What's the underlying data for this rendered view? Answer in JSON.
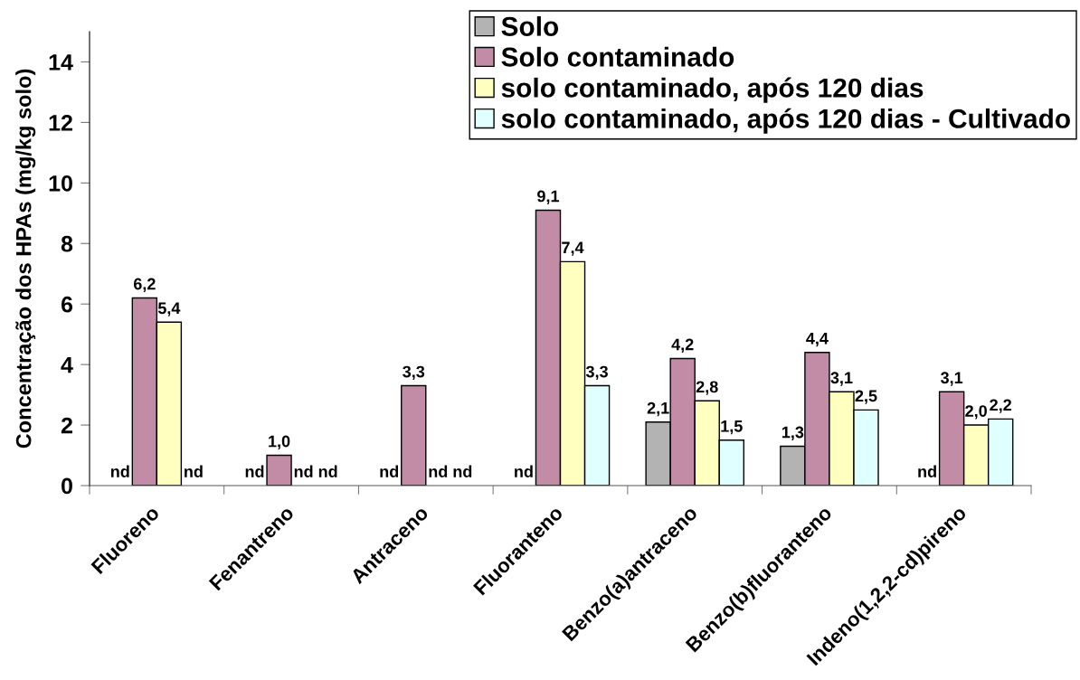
{
  "chart_data": {
    "type": "bar",
    "ylabel": "Concentração dos HPAs (mg/kg solo)",
    "categories": [
      "Fluoreno",
      "Fenantreno",
      "Antraceno",
      "Fluoranteno",
      "Benzo(a)antraceno",
      "Benzo(b)fluoranteno",
      "Indeno(1,2,2-cd)pireno"
    ],
    "series": [
      {
        "name": "Solo",
        "color": "#b3b3b3",
        "values": [
          null,
          null,
          null,
          null,
          2.1,
          1.3,
          null
        ],
        "value_labels": [
          "nd",
          "nd",
          "nd",
          "nd",
          "2,1",
          "1,3",
          "nd"
        ]
      },
      {
        "name": "Solo contaminado",
        "color": "#c28ca6",
        "values": [
          6.2,
          1.0,
          3.3,
          9.1,
          4.2,
          4.4,
          3.1
        ],
        "value_labels": [
          "6,2",
          "1,0",
          "3,3",
          "9,1",
          "4,2",
          "4,4",
          "3,1"
        ]
      },
      {
        "name": "solo contaminado, após 120 dias",
        "color": "#ffffbf",
        "values": [
          5.4,
          null,
          null,
          7.4,
          2.8,
          3.1,
          2.0
        ],
        "value_labels": [
          "5,4",
          "nd",
          "nd",
          "7,4",
          "2,8",
          "3,1",
          "2,0"
        ]
      },
      {
        "name": "solo contaminado, após 120 dias - Cultivado",
        "color": "#e0ffff",
        "values": [
          null,
          null,
          null,
          3.3,
          1.5,
          2.5,
          2.2
        ],
        "value_labels": [
          "nd",
          "nd",
          "nd",
          "3,3",
          "1,5",
          "2,5",
          "2,2"
        ]
      }
    ],
    "ylim": [
      0,
      15
    ],
    "yticks": [
      0,
      2,
      4,
      6,
      8,
      10,
      12,
      14
    ],
    "legend": "top right"
  }
}
